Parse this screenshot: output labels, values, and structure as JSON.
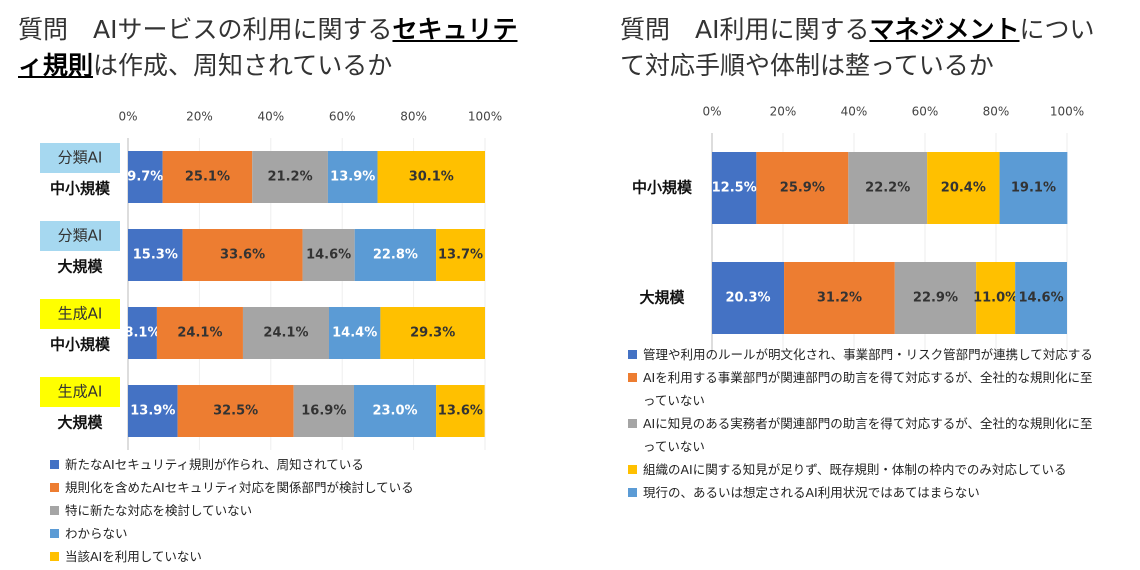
{
  "chart_data": [
    {
      "type": "stacked-bar-horizontal",
      "title": [
        "質問　AIサービスの利用に関する",
        "セキュリティ規則",
        "は作成、周知されているか"
      ],
      "categories": [
        [
          "分類AI",
          "中小規模"
        ],
        [
          "分類AI",
          "大規模"
        ],
        [
          "生成AI",
          "中小規模"
        ],
        [
          "生成AI",
          "大規模"
        ]
      ],
      "category_box_colors": [
        "#a6d8f0",
        "#a6d8f0",
        "#ffff00",
        "#ffff00"
      ],
      "xlim": [
        0,
        100
      ],
      "xticks": [
        {
          "value": 0,
          "label": "0%"
        },
        {
          "value": 20,
          "label": "20%"
        },
        {
          "value": 40,
          "label": "40%"
        },
        {
          "value": 60,
          "label": "60%"
        },
        {
          "value": 80,
          "label": "80%"
        },
        {
          "value": 100,
          "label": "100%"
        }
      ],
      "grid": true,
      "series": [
        {
          "name": "新たなAIセキュリティ規則が作られ、周知されている",
          "color": "#4472c4",
          "label_color": "#ffffff",
          "values": [
            9.7,
            15.3,
            8.1,
            13.9
          ],
          "value_labels": [
            "9.7%",
            "15.3%",
            "8.1%",
            "13.9%"
          ]
        },
        {
          "name": "規則化を含めたAIセキュリティ対応を関係部門が検討している",
          "color": "#ed7d31",
          "label_color": "#333333",
          "values": [
            25.1,
            33.6,
            24.1,
            32.5
          ],
          "value_labels": [
            "25.1%",
            "33.6%",
            "24.1%",
            "32.5%"
          ]
        },
        {
          "name": "特に新たな対応を検討していない",
          "color": "#a5a5a5",
          "label_color": "#333333",
          "values": [
            21.2,
            14.6,
            24.1,
            16.9
          ],
          "value_labels": [
            "21.2%",
            "14.6%",
            "24.1%",
            "16.9%"
          ]
        },
        {
          "name": "わからない",
          "color": "#5b9bd5",
          "label_color": "#ffffff",
          "values": [
            13.9,
            22.8,
            14.4,
            23.0
          ],
          "value_labels": [
            "13.9%",
            "22.8%",
            "14.4%",
            "23.0%"
          ]
        },
        {
          "name": "当該AIを利用していない",
          "color": "#ffc000",
          "label_color": "#333333",
          "values": [
            30.1,
            13.7,
            29.3,
            13.6
          ],
          "value_labels": [
            "30.1%",
            "13.7%",
            "29.3%",
            "13.6%"
          ]
        }
      ]
    },
    {
      "type": "stacked-bar-horizontal",
      "title": [
        "質問　AI利用に関する",
        "マネジメント",
        "について対応手順や体制は整っているか"
      ],
      "categories": [
        "中小規模",
        "大規模"
      ],
      "xlim": [
        0,
        100
      ],
      "xticks": [
        {
          "value": 0,
          "label": "0%"
        },
        {
          "value": 20,
          "label": "20%"
        },
        {
          "value": 40,
          "label": "40%"
        },
        {
          "value": 60,
          "label": "60%"
        },
        {
          "value": 80,
          "label": "80%"
        },
        {
          "value": 100,
          "label": "100%"
        }
      ],
      "grid": true,
      "series": [
        {
          "name": "管理や利用のルールが明文化され、事業部門・リスク管部門が連携して対応する",
          "color": "#4472c4",
          "label_color": "#ffffff",
          "values": [
            12.5,
            20.3
          ],
          "value_labels": [
            "12.5%",
            "20.3%"
          ]
        },
        {
          "name": "AIを利用する事業部門が関連部門の助言を得て対応するが、全社的な規則化に至っていない",
          "color": "#ed7d31",
          "label_color": "#333333",
          "values": [
            25.9,
            31.2
          ],
          "value_labels": [
            "25.9%",
            "31.2%"
          ]
        },
        {
          "name": "AIに知見のある実務者が関連部門の助言を得て対応するが、全社的な規則化に至っていない",
          "color": "#a5a5a5",
          "label_color": "#333333",
          "values": [
            22.2,
            22.9
          ],
          "value_labels": [
            "22.2%",
            "22.9%"
          ]
        },
        {
          "name": "組織のAIに関する知見が足りず、既存規則・体制の枠内でのみ対応している",
          "color": "#ffc000",
          "label_color": "#333333",
          "values": [
            20.4,
            11.0
          ],
          "value_labels": [
            "20.4%",
            "11.0%"
          ]
        },
        {
          "name": "現行の、あるいは想定されるAI利用状況ではあてはまらない",
          "color": "#5b9bd5",
          "label_color": "#333333",
          "values": [
            19.1,
            14.6
          ],
          "value_labels": [
            "19.1%",
            "14.6%"
          ]
        }
      ]
    }
  ]
}
